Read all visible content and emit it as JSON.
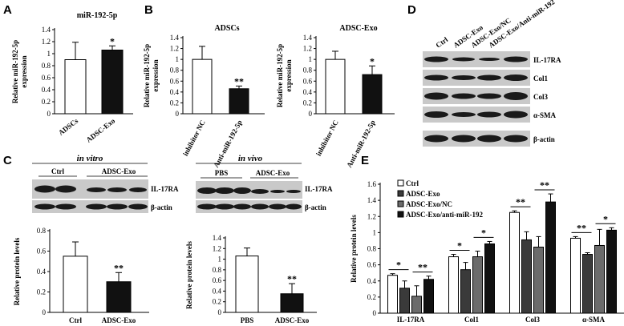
{
  "panels": [
    "A",
    "B",
    "C",
    "D",
    "E"
  ],
  "colors": {
    "white_fill": "#ffffff",
    "black_fill": "#111111",
    "dark_gray": "#3a3a3a",
    "mid_gray": "#6b6b6b",
    "axis": "#000000",
    "band": "#1a1a1a",
    "blot_bg": "#c9c9c9"
  },
  "blots": {
    "D": {
      "headers": [
        "Ctrl",
        "ADSC-Exo",
        "ADSC-Exo/NC",
        "ADSC-Exo/Anti-miR-192"
      ],
      "rows": [
        "IL-17RA",
        "Col1",
        "Col3",
        "α-SMA",
        "β-actin"
      ]
    },
    "C_vitro": {
      "title": "in vitro",
      "groups": [
        "Ctrl",
        "ADSC-Exo"
      ],
      "rows": [
        "IL-17RA",
        "β-actin"
      ]
    },
    "C_vivo": {
      "title": "in vivo",
      "groups": [
        "PBS",
        "ADSC-Exo"
      ],
      "rows": [
        "IL-17RA",
        "β-actin"
      ]
    }
  },
  "chart_data": [
    {
      "id": "A",
      "type": "bar",
      "title": "miR-192-5p",
      "ylabel": "Relative miR-192-5p expression",
      "categories": [
        "ADSCs",
        "ADSC-Exo"
      ],
      "values": [
        0.9,
        1.06
      ],
      "errors": [
        0.29,
        0.07
      ],
      "fills": [
        "white",
        "black"
      ],
      "significance": [
        "",
        "*"
      ],
      "ylim": [
        0,
        1.4
      ],
      "yticks": [
        0,
        0.2,
        0.4,
        0.6,
        0.8,
        1,
        1.2,
        1.4
      ],
      "ytick_labels": [
        "0",
        "0.2",
        "0.4",
        "0.6",
        "0.8",
        "1",
        "1.2",
        "1.4"
      ]
    },
    {
      "id": "B1",
      "type": "bar",
      "title": "ADSCs",
      "ylabel": "Relative miR-192-5p expression",
      "categories": [
        "inhibitor NC",
        "Anti-miR-192-5p"
      ],
      "values": [
        1.0,
        0.46
      ],
      "errors": [
        0.24,
        0.05
      ],
      "fills": [
        "white",
        "black"
      ],
      "significance": [
        "",
        "**"
      ],
      "ylim": [
        0,
        1.4
      ],
      "yticks": [
        0,
        0.2,
        0.4,
        0.6,
        0.8,
        1,
        1.2,
        1.4
      ],
      "ytick_labels": [
        "0",
        "0.2",
        "0.4",
        "0.6",
        "0.8",
        "1",
        "1.2",
        "1.4"
      ]
    },
    {
      "id": "B2",
      "type": "bar",
      "title": "ADSC-Exo",
      "ylabel": "Relative miR-192-5p expression",
      "categories": [
        "inhibitor NC",
        "Anti-miR-192-5p"
      ],
      "values": [
        1.0,
        0.72
      ],
      "errors": [
        0.15,
        0.16
      ],
      "fills": [
        "white",
        "black"
      ],
      "significance": [
        "",
        "*"
      ],
      "ylim": [
        0,
        1.4
      ],
      "yticks": [
        0,
        0.2,
        0.4,
        0.6,
        0.8,
        1,
        1.2,
        1.4
      ],
      "ytick_labels": [
        "0",
        "0.2",
        "0.4",
        "0.6",
        "0.8",
        "1",
        "1.2",
        "1.4"
      ]
    },
    {
      "id": "C1",
      "type": "bar",
      "title": "",
      "ylabel": "Relative protein levels",
      "categories": [
        "Ctrl",
        "ADSC-Exo"
      ],
      "values": [
        0.55,
        0.3
      ],
      "errors": [
        0.14,
        0.09
      ],
      "fills": [
        "white",
        "black"
      ],
      "significance": [
        "",
        "**"
      ],
      "ylim": [
        0,
        0.8
      ],
      "yticks": [
        0,
        0.2,
        0.4,
        0.6,
        0.8
      ],
      "ytick_labels": [
        "0",
        "0.2",
        "0.4",
        "0.6",
        "0.8"
      ]
    },
    {
      "id": "C2",
      "type": "bar",
      "title": "",
      "ylabel": "Relative protein levels",
      "categories": [
        "PBS",
        "ADSC-Exo"
      ],
      "values": [
        1.06,
        0.35
      ],
      "errors": [
        0.15,
        0.19
      ],
      "fills": [
        "white",
        "black"
      ],
      "significance": [
        "",
        "**"
      ],
      "ylim": [
        0,
        1.4
      ],
      "yticks": [
        0,
        0.2,
        0.4,
        0.6,
        0.8,
        1,
        1.2,
        1.4
      ],
      "ytick_labels": [
        "0",
        "0.2",
        "0.4",
        "0.6",
        "0.8",
        "1",
        "1.2",
        "1.4"
      ]
    },
    {
      "id": "E",
      "type": "bar",
      "title": "",
      "ylabel": "Relative protein levels",
      "categories": [
        "IL-17RA",
        "Col1",
        "Col3",
        "α-SMA"
      ],
      "series": [
        {
          "name": "Ctrl",
          "fill": "white",
          "values": [
            0.47,
            0.7,
            1.25,
            0.93
          ],
          "errors": [
            0.02,
            0.03,
            0.02,
            0.02
          ]
        },
        {
          "name": "ADSC-Exo",
          "fill": "dark",
          "values": [
            0.31,
            0.54,
            0.91,
            0.73
          ],
          "errors": [
            0.09,
            0.09,
            0.1,
            0.02
          ]
        },
        {
          "name": "ADSC-Exo/NC",
          "fill": "mid",
          "values": [
            0.21,
            0.7,
            0.82,
            0.84
          ],
          "errors": [
            0.13,
            0.07,
            0.13,
            0.2
          ]
        },
        {
          "name": "ADSC-Exo/anti-miR-192",
          "fill": "black",
          "values": [
            0.42,
            0.86,
            1.38,
            1.03
          ],
          "errors": [
            0.04,
            0.03,
            0.1,
            0.03
          ]
        }
      ],
      "comparisons": [
        {
          "group": 0,
          "from": 0,
          "to": 1,
          "label": "*",
          "y": 0.54
        },
        {
          "group": 0,
          "from": 2,
          "to": 3,
          "label": "**",
          "y": 0.51
        },
        {
          "group": 1,
          "from": 0,
          "to": 1,
          "label": "*",
          "y": 0.78
        },
        {
          "group": 1,
          "from": 2,
          "to": 3,
          "label": "*",
          "y": 0.94
        },
        {
          "group": 2,
          "from": 0,
          "to": 1,
          "label": "**",
          "y": 1.32
        },
        {
          "group": 2,
          "from": 2,
          "to": 3,
          "label": "**",
          "y": 1.53
        },
        {
          "group": 3,
          "from": 0,
          "to": 1,
          "label": "**",
          "y": 1.0
        },
        {
          "group": 3,
          "from": 2,
          "to": 3,
          "label": "*",
          "y": 1.11
        }
      ],
      "legend_placement": "top-left",
      "ylim": [
        0,
        1.6
      ],
      "yticks": [
        0,
        0.2,
        0.4,
        0.6,
        0.8,
        1,
        1.2,
        1.4,
        1.6
      ],
      "ytick_labels": [
        "0",
        "0.2",
        "0.4",
        "0.6",
        "0.8",
        "1",
        "1.2",
        "1.4",
        "1.6"
      ]
    }
  ]
}
